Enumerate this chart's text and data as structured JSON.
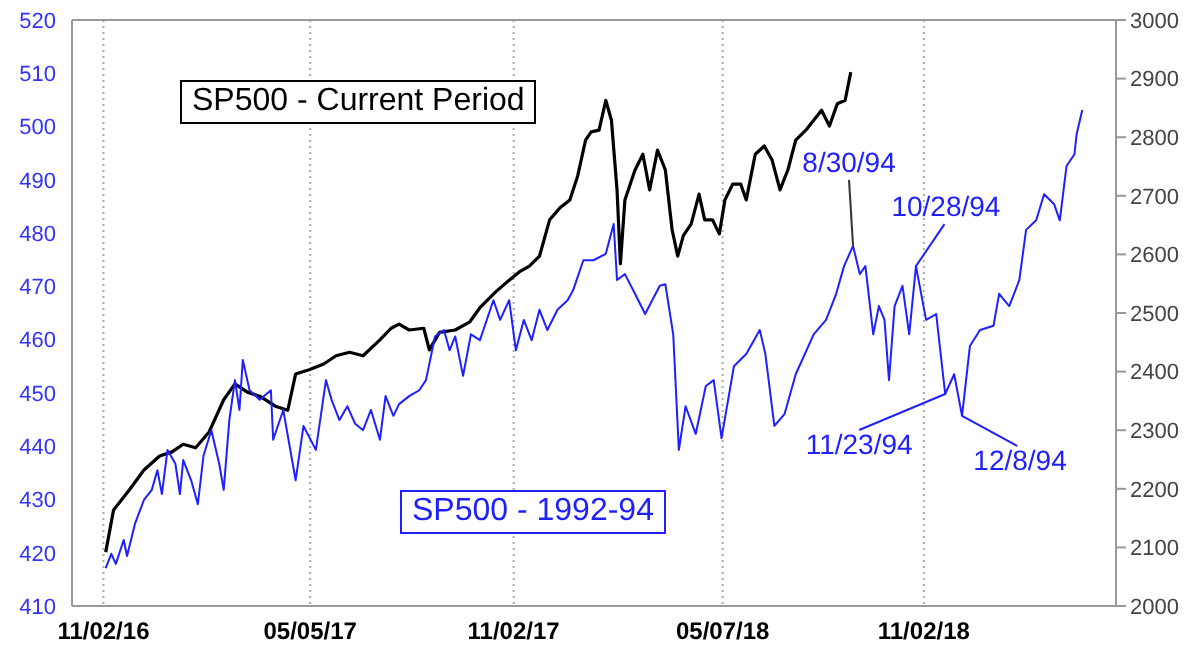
{
  "chart_data": {
    "type": "line",
    "xlim": [
      "2016-10-05",
      "2019-04-22"
    ],
    "xticks": [
      {
        "value": "2016-11-02",
        "label": "11/02/16"
      },
      {
        "value": "2017-05-05",
        "label": "05/05/17"
      },
      {
        "value": "2017-11-02",
        "label": "11/02/17"
      },
      {
        "value": "2018-05-07",
        "label": "05/07/18"
      },
      {
        "value": "2018-11-02",
        "label": "11/02/18"
      }
    ],
    "ylim": [
      410,
      520
    ],
    "yticks": [
      410,
      420,
      430,
      440,
      450,
      460,
      470,
      480,
      490,
      500,
      510,
      520
    ],
    "y2lim": [
      2000,
      3000
    ],
    "y2ticks": [
      2000,
      2100,
      2200,
      2300,
      2400,
      2500,
      2600,
      2700,
      2800,
      2900,
      3000
    ],
    "grid": "x",
    "legend": false,
    "marker": "none",
    "line_style": "solid",
    "series": [
      {
        "name": "SP500 - Current Period",
        "color": "#000000",
        "axis": "y2",
        "x": [
          "2016-11-04",
          "2016-11-11",
          "2016-11-25",
          "2016-12-08",
          "2016-12-22",
          "2017-01-02",
          "2017-01-12",
          "2017-01-23",
          "2017-02-04",
          "2017-02-17",
          "2017-02-27",
          "2017-03-10",
          "2017-03-21",
          "2017-04-04",
          "2017-04-15",
          "2017-04-22",
          "2017-05-04",
          "2017-05-17",
          "2017-05-28",
          "2017-06-09",
          "2017-06-21",
          "2017-07-06",
          "2017-07-16",
          "2017-07-23",
          "2017-08-01",
          "2017-08-14",
          "2017-08-19",
          "2017-08-28",
          "2017-09-11",
          "2017-09-24",
          "2017-10-03",
          "2017-10-17",
          "2017-10-29",
          "2017-11-07",
          "2017-11-16",
          "2017-11-25",
          "2017-12-04",
          "2017-12-13",
          "2017-12-22",
          "2017-12-29",
          "2018-01-05",
          "2018-01-10",
          "2018-01-17",
          "2018-01-23",
          "2018-01-28",
          "2018-02-02",
          "2018-02-05",
          "2018-02-09",
          "2018-02-18",
          "2018-02-25",
          "2018-03-03",
          "2018-03-10",
          "2018-03-17",
          "2018-03-23",
          "2018-03-28",
          "2018-04-02",
          "2018-04-09",
          "2018-04-16",
          "2018-04-21",
          "2018-04-28",
          "2018-05-04",
          "2018-05-09",
          "2018-05-16",
          "2018-05-23",
          "2018-05-28",
          "2018-06-05",
          "2018-06-13",
          "2018-06-20",
          "2018-06-27",
          "2018-07-04",
          "2018-07-11",
          "2018-07-20",
          "2018-07-27",
          "2018-08-03",
          "2018-08-10",
          "2018-08-17",
          "2018-08-24",
          "2018-08-29"
        ],
        "values": [
          2092,
          2164,
          2198,
          2232,
          2256,
          2263,
          2276,
          2270,
          2297,
          2352,
          2379,
          2365,
          2358,
          2341,
          2334,
          2396,
          2403,
          2413,
          2427,
          2433,
          2427,
          2454,
          2474,
          2481,
          2471,
          2474,
          2437,
          2467,
          2471,
          2485,
          2509,
          2536,
          2556,
          2570,
          2580,
          2597,
          2659,
          2679,
          2693,
          2734,
          2795,
          2809,
          2812,
          2863,
          2829,
          2710,
          2584,
          2693,
          2744,
          2771,
          2710,
          2778,
          2744,
          2642,
          2597,
          2632,
          2652,
          2703,
          2659,
          2659,
          2635,
          2693,
          2720,
          2720,
          2693,
          2771,
          2785,
          2761,
          2710,
          2744,
          2795,
          2812,
          2829,
          2846,
          2819,
          2857,
          2863,
          2911
        ]
      },
      {
        "name": "SP500 - 1992-94",
        "color": "#2020ff",
        "x": [
          "2016-11-04",
          "2016-11-09",
          "2016-11-13",
          "2016-11-20",
          "2016-11-23",
          "2016-11-30",
          "2016-12-08",
          "2016-12-15",
          "2016-12-20",
          "2016-12-24",
          "2016-12-29",
          "2017-01-05",
          "2017-01-09",
          "2017-01-12",
          "2017-01-19",
          "2017-01-25",
          "2017-01-30",
          "2017-02-06",
          "2017-02-13",
          "2017-02-17",
          "2017-02-22",
          "2017-02-27",
          "2017-03-03",
          "2017-03-06",
          "2017-03-12",
          "2017-03-21",
          "2017-03-31",
          "2017-04-02",
          "2017-04-11",
          "2017-04-22",
          "2017-04-29",
          "2017-05-10",
          "2017-05-19",
          "2017-05-24",
          "2017-05-31",
          "2017-06-07",
          "2017-06-14",
          "2017-06-21",
          "2017-06-28",
          "2017-07-06",
          "2017-07-11",
          "2017-07-18",
          "2017-07-23",
          "2017-08-01",
          "2017-08-10",
          "2017-08-16",
          "2017-08-24",
          "2017-09-01",
          "2017-09-06",
          "2017-09-11",
          "2017-09-18",
          "2017-09-25",
          "2017-10-03",
          "2017-10-15",
          "2017-10-21",
          "2017-10-29",
          "2017-11-04",
          "2017-11-11",
          "2017-11-18",
          "2017-11-25",
          "2017-12-02",
          "2017-12-11",
          "2017-12-20",
          "2017-12-25",
          "2018-01-03",
          "2018-01-12",
          "2018-01-23",
          "2018-01-30",
          "2018-02-02",
          "2018-02-09",
          "2018-02-18",
          "2018-02-27",
          "2018-03-12",
          "2018-03-17",
          "2018-03-24",
          "2018-03-29",
          "2018-04-04",
          "2018-04-13",
          "2018-04-22",
          "2018-04-29",
          "2018-05-06",
          "2018-05-17",
          "2018-05-28",
          "2018-06-09",
          "2018-06-14",
          "2018-06-22",
          "2018-07-01",
          "2018-07-11",
          "2018-07-27",
          "2018-08-07",
          "2018-08-16",
          "2018-08-23",
          "2018-08-31",
          "2018-09-06",
          "2018-09-11",
          "2018-09-18",
          "2018-09-23",
          "2018-09-28",
          "2018-10-02",
          "2018-10-07",
          "2018-10-14",
          "2018-10-20",
          "2018-10-26",
          "2018-11-04",
          "2018-11-13",
          "2018-11-21",
          "2018-11-29",
          "2018-12-06",
          "2018-12-13",
          "2018-12-22",
          "2019-01-03",
          "2019-01-08",
          "2019-01-17",
          "2019-01-26",
          "2019-02-01",
          "2019-02-10",
          "2019-02-17",
          "2019-02-26",
          "2019-03-03",
          "2019-03-09",
          "2019-03-16",
          "2019-03-18",
          "2019-03-23"
        ],
        "values": [
          417.1,
          419.8,
          417.9,
          422.4,
          419.4,
          425.4,
          429.9,
          431.8,
          435.5,
          431,
          439.3,
          436.7,
          431,
          437.4,
          433.6,
          429.1,
          438.2,
          443,
          436.7,
          431.8,
          444.9,
          452.4,
          446.8,
          456.2,
          450.5,
          448.7,
          450.5,
          441.2,
          446.8,
          433.6,
          443.8,
          439.3,
          452.4,
          448.7,
          444.9,
          447.5,
          444.2,
          443,
          446.8,
          441.2,
          449.4,
          445.7,
          447.9,
          449.4,
          450.5,
          452.4,
          460.6,
          461.8,
          458,
          460.6,
          453.2,
          461,
          459.9,
          467.4,
          463.7,
          467.4,
          458,
          463.7,
          459.9,
          465.6,
          461.8,
          465.6,
          467.4,
          469.3,
          474.9,
          474.9,
          476.1,
          481.7,
          471.2,
          472.3,
          468.6,
          464.8,
          470.1,
          470.4,
          461,
          439.3,
          447.5,
          442.3,
          451.3,
          452.4,
          441.5,
          455,
          457.3,
          461.8,
          457.3,
          443.8,
          446,
          453.5,
          461,
          463.7,
          468.6,
          473.8,
          477.6,
          472.3,
          473.8,
          461,
          466.3,
          463.7,
          452.4,
          466.3,
          470.1,
          461,
          473.8,
          463.7,
          464.8,
          449.8,
          453.5,
          445.7,
          458.8,
          461.8,
          462.6,
          468.6,
          466.3,
          471.2,
          480.6,
          482.4,
          487.3,
          485.4,
          482.4,
          492.6,
          494.8,
          498.6,
          503.1
        ]
      }
    ],
    "annotations": [
      {
        "text": "8/30/94",
        "x": "2018-08-31",
        "y": 477.6
      },
      {
        "text": "10/28/94",
        "x": "2018-10-26",
        "y": 473.8
      },
      {
        "text": "11/23/94",
        "x": "2018-11-21",
        "y": 449.8
      },
      {
        "text": "12/8/94",
        "x": "2018-12-06",
        "y": 445.7
      }
    ]
  }
}
